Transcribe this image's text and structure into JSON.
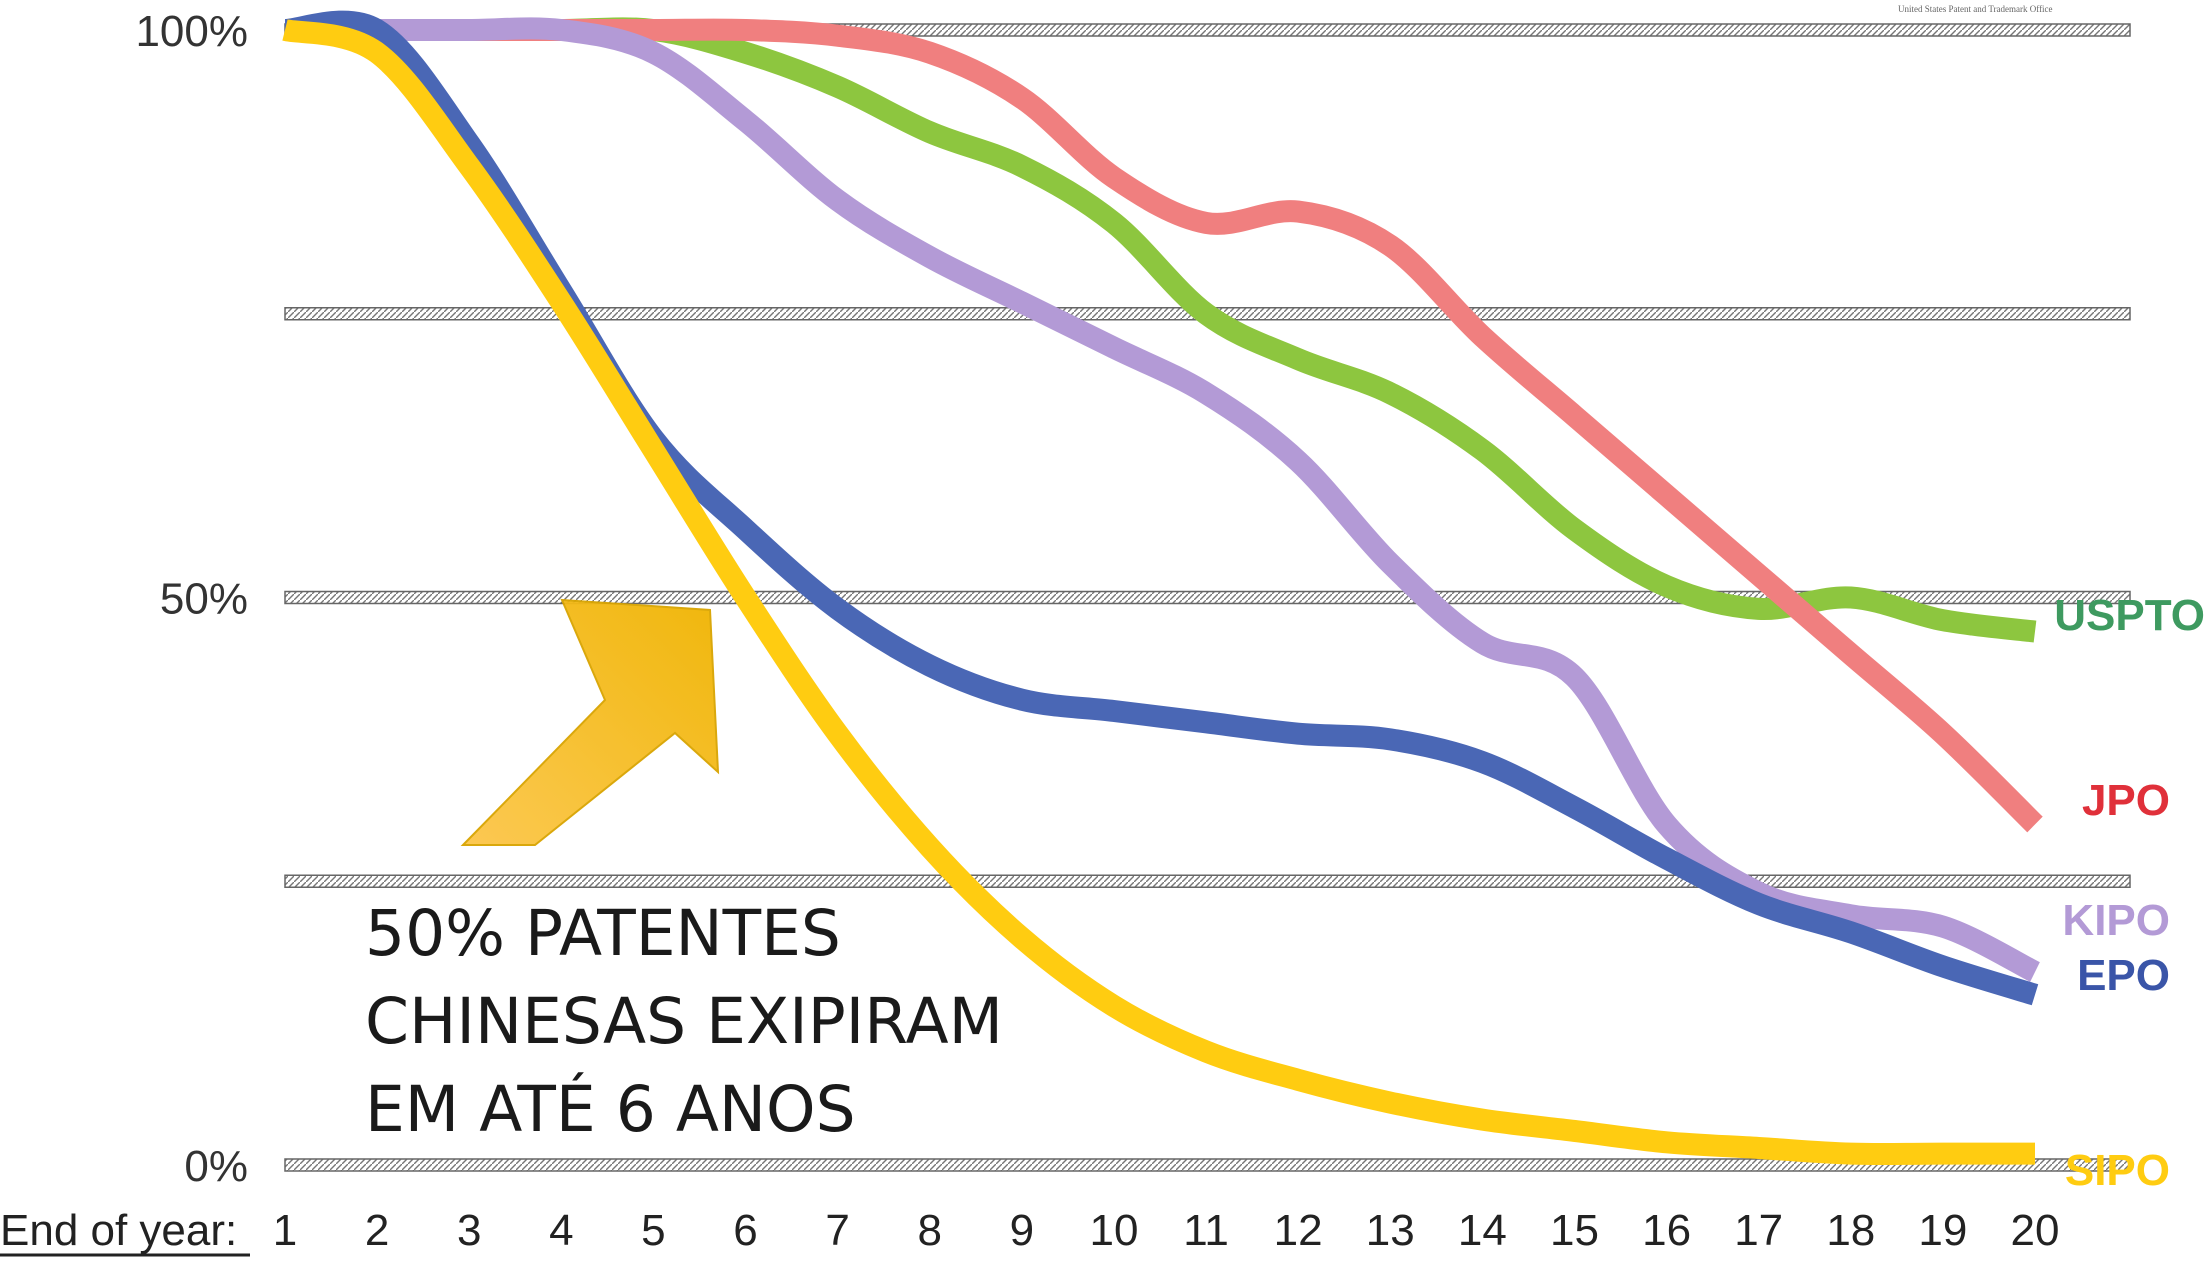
{
  "chart_data": {
    "type": "line",
    "title": "",
    "xlabel": "End of year:",
    "ylabel": "",
    "xlim": [
      1,
      20
    ],
    "ylim": [
      0,
      100
    ],
    "x": [
      1,
      2,
      3,
      4,
      5,
      6,
      7,
      8,
      9,
      10,
      11,
      12,
      13,
      14,
      15,
      16,
      17,
      18,
      19,
      20
    ],
    "yticks": [
      "100%",
      "50%",
      "0%"
    ],
    "grid": true,
    "series": [
      {
        "name": "USPTO",
        "color": "#8dc63f",
        "values": [
          100,
          100,
          100,
          100,
          100,
          98,
          95,
          91,
          88,
          83,
          75,
          71,
          68,
          63,
          56,
          51,
          49,
          50,
          48,
          47
        ]
      },
      {
        "name": "JPO",
        "color": "#f07f7f",
        "values": [
          100,
          100,
          100,
          100,
          100,
          100,
          99.5,
          98,
          94,
          87,
          83,
          84,
          81,
          73,
          66,
          59,
          52,
          45,
          38,
          30
        ]
      },
      {
        "name": "KIPO",
        "color": "#b39ad6",
        "values": [
          100,
          100,
          100,
          100,
          98,
          92,
          85,
          80,
          76,
          72,
          68,
          62,
          53,
          46,
          43,
          30,
          24,
          22,
          21,
          17
        ]
      },
      {
        "name": "EPO",
        "color": "#4a67b5",
        "values": [
          100,
          100,
          90,
          77,
          64,
          56,
          49,
          44,
          41,
          40,
          39,
          38,
          37.5,
          35.5,
          31.5,
          27,
          23,
          20.5,
          17.5,
          15
        ]
      },
      {
        "name": "SIPO",
        "color": "#ffcc11",
        "values": [
          100,
          98,
          88,
          76,
          63,
          50,
          38,
          28,
          20,
          14,
          10,
          7.5,
          5.5,
          4,
          3,
          2,
          1.5,
          1,
          1,
          1
        ]
      }
    ],
    "annotations": [
      "50% PATENTES",
      "CHINESAS EXIPIRAM",
      "EM ATÉ 6 ANOS"
    ]
  },
  "logo_text": "United States Patent and Trademark Office"
}
